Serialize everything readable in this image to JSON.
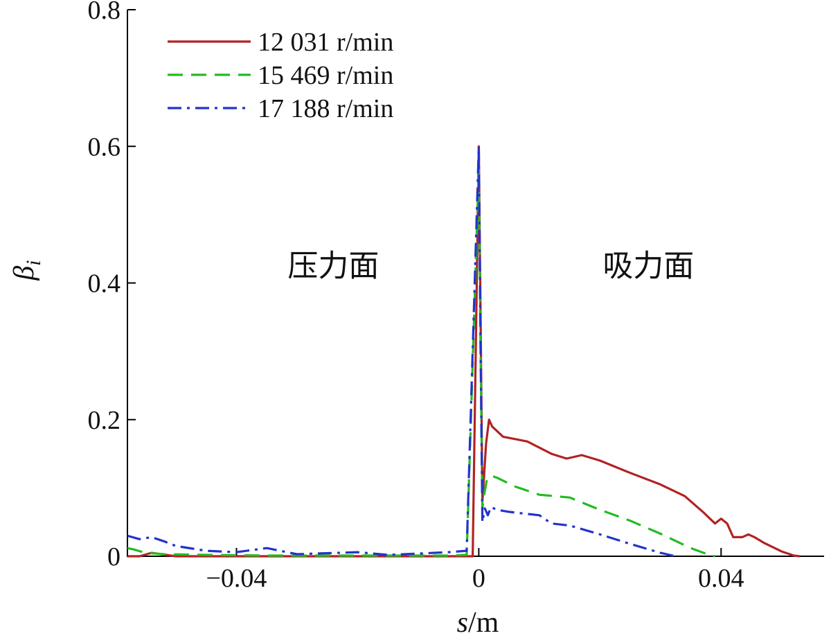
{
  "chart_data": {
    "type": "line",
    "xlabel_var": "s",
    "xlabel_unit": "/m",
    "ylabel_var": "β",
    "ylabel_sub": "i",
    "xlim": [
      -0.058,
      0.057
    ],
    "ylim": [
      0,
      0.8
    ],
    "x_ticks": [
      -0.04,
      0,
      0.04
    ],
    "x_tick_labels": [
      "−0.04",
      "0",
      "0.04"
    ],
    "y_ticks": [
      0,
      0.2,
      0.4,
      0.6,
      0.8
    ],
    "y_tick_labels": [
      "0",
      "0.2",
      "0.4",
      "0.6",
      "0.8"
    ],
    "grid": false,
    "legend_position": "top-left",
    "annotations": [
      {
        "text": "压力面",
        "x": -0.024,
        "y": 0.41
      },
      {
        "text": "吸力面",
        "x": 0.028,
        "y": 0.41
      }
    ],
    "series": [
      {
        "name": "12 031 r/min",
        "color": "#b22222",
        "dash": "solid",
        "x": [
          -0.058,
          -0.056,
          -0.054,
          -0.05,
          -0.04,
          -0.03,
          -0.02,
          -0.01,
          -0.003,
          -0.001,
          0,
          0.0003,
          0.0006,
          0.0009,
          0.0012,
          0.0017,
          0.0022,
          0.004,
          0.008,
          0.012,
          0.0145,
          0.017,
          0.02,
          0.025,
          0.03,
          0.034,
          0.037,
          0.039,
          0.04,
          0.041,
          0.042,
          0.0435,
          0.0445,
          0.0455,
          0.047,
          0.05,
          0.052,
          0.053
        ],
        "values": [
          0,
          0,
          0.005,
          0,
          0,
          0,
          0,
          0,
          0,
          0,
          0.6,
          0.35,
          0.08,
          0.12,
          0.165,
          0.2,
          0.19,
          0.175,
          0.168,
          0.15,
          0.143,
          0.148,
          0.14,
          0.122,
          0.105,
          0.088,
          0.065,
          0.048,
          0.055,
          0.048,
          0.028,
          0.028,
          0.032,
          0.028,
          0.02,
          0.007,
          0.001,
          0
        ]
      },
      {
        "name": "15 469 r/min",
        "color": "#22bb22",
        "dash": "dashed",
        "x": [
          -0.058,
          -0.057,
          -0.055,
          -0.052,
          -0.045,
          -0.035,
          -0.025,
          -0.015,
          -0.005,
          -0.002,
          0,
          0.0003,
          0.0006,
          0.0009,
          0.0013,
          0.002,
          0.003,
          0.006,
          0.01,
          0.015,
          0.02,
          0.025,
          0.03,
          0.035,
          0.038,
          0.039
        ],
        "values": [
          0.012,
          0.01,
          0.005,
          0.003,
          0.002,
          0.001,
          0.001,
          0.001,
          0.001,
          0.002,
          0.57,
          0.3,
          0.07,
          0.09,
          0.11,
          0.118,
          0.115,
          0.102,
          0.09,
          0.086,
          0.068,
          0.052,
          0.033,
          0.012,
          0.002,
          0
        ]
      },
      {
        "name": "17 188 r/min",
        "color": "#2233cc",
        "dash": "dashdot",
        "x": [
          -0.058,
          -0.056,
          -0.054,
          -0.052,
          -0.05,
          -0.045,
          -0.04,
          -0.035,
          -0.03,
          -0.02,
          -0.015,
          -0.01,
          -0.005,
          -0.002,
          0,
          0.0003,
          0.0006,
          0.001,
          0.0015,
          0.002,
          0.003,
          0.005,
          0.008,
          0.01,
          0.012,
          0.015,
          0.02,
          0.025,
          0.03,
          0.032,
          0.033
        ],
        "values": [
          0.03,
          0.025,
          0.028,
          0.022,
          0.015,
          0.008,
          0.006,
          0.012,
          0.003,
          0.006,
          0.002,
          0.004,
          0.006,
          0.008,
          0.6,
          0.3,
          0.05,
          0.07,
          0.06,
          0.072,
          0.068,
          0.065,
          0.062,
          0.06,
          0.048,
          0.045,
          0.032,
          0.018,
          0.005,
          0.001,
          0
        ]
      }
    ]
  }
}
